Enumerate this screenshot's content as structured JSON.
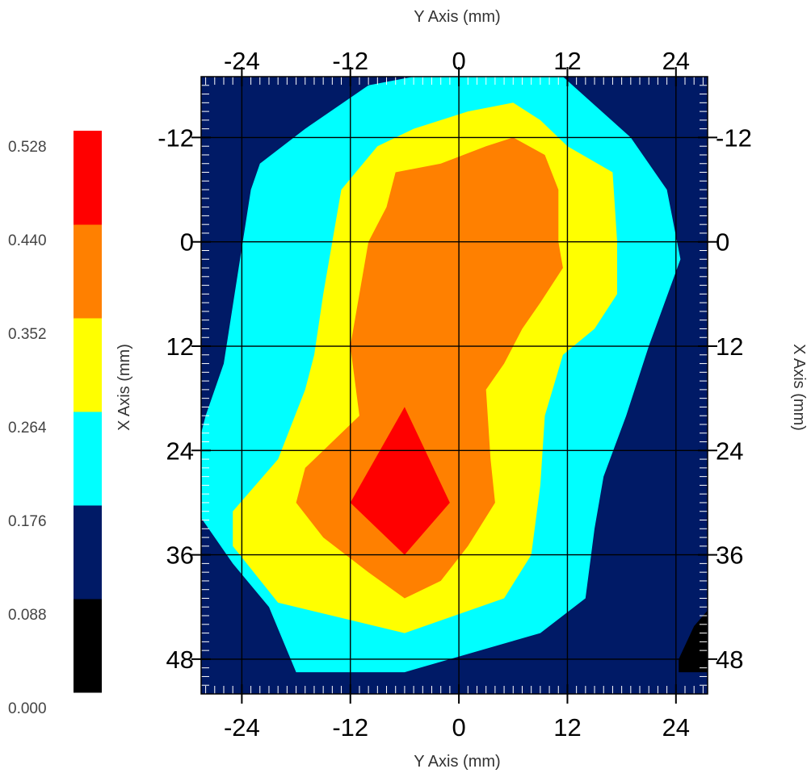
{
  "chart_data": {
    "type": "contour",
    "x_axis": {
      "label": "Y Axis (mm)",
      "range": [
        -28.5,
        27.5
      ],
      "ticks": [
        -24,
        -12,
        0,
        12,
        24
      ],
      "position": "top and bottom"
    },
    "y_axis": {
      "label": "X Axis (mm)",
      "range": [
        -19,
        52
      ],
      "ticks": [
        -12,
        0,
        12,
        24,
        36,
        48
      ],
      "inverted": true,
      "position": "left and right"
    },
    "grid": true,
    "colorbar": {
      "position": "left",
      "levels": [
        "0.000",
        "0.088",
        "0.176",
        "0.264",
        "0.352",
        "0.440",
        "0.528"
      ],
      "colors": [
        "#000000",
        "#001a66",
        "#00ffff",
        "#ffff00",
        "#ff8000",
        "#ff0000"
      ]
    },
    "regions": [
      {
        "level_min": 0.176,
        "level_max": 0.264,
        "color": "#00ffff",
        "points": [
          [
            -5,
            -19
          ],
          [
            11.5,
            -19
          ],
          [
            19,
            -12
          ],
          [
            23,
            -6
          ],
          [
            24.5,
            2
          ],
          [
            21,
            12
          ],
          [
            18.5,
            20
          ],
          [
            16,
            27
          ],
          [
            15,
            33
          ],
          [
            14,
            41
          ],
          [
            9,
            45
          ],
          [
            -6,
            49.5
          ],
          [
            -18,
            49.5
          ],
          [
            -21,
            42
          ],
          [
            -25,
            37
          ],
          [
            -29,
            31
          ],
          [
            -29,
            24
          ],
          [
            -28,
            20
          ],
          [
            -26,
            14
          ],
          [
            -23,
            -6
          ],
          [
            -22,
            -9
          ],
          [
            -17,
            -13
          ],
          [
            -10,
            -18
          ]
        ]
      },
      {
        "level_min": 0.264,
        "level_max": 0.352,
        "color": "#ffff00",
        "points": [
          [
            1,
            -15
          ],
          [
            6,
            -16
          ],
          [
            9,
            -14
          ],
          [
            12,
            -11
          ],
          [
            17,
            -8
          ],
          [
            17.5,
            0
          ],
          [
            17.5,
            6
          ],
          [
            15,
            10
          ],
          [
            11.5,
            13
          ],
          [
            9.5,
            20
          ],
          [
            9,
            28
          ],
          [
            8,
            36
          ],
          [
            5,
            41
          ],
          [
            -6,
            45
          ],
          [
            -20,
            41.5
          ],
          [
            -25,
            35
          ],
          [
            -25,
            31
          ],
          [
            -20,
            25
          ],
          [
            -17,
            17
          ],
          [
            -16,
            13
          ],
          [
            -15,
            6
          ],
          [
            -13,
            -6
          ],
          [
            -9,
            -11
          ],
          [
            -5,
            -13
          ]
        ]
      },
      {
        "level_min": 0.352,
        "level_max": 0.44,
        "color": "#ff8000",
        "points": [
          [
            3,
            -11
          ],
          [
            6,
            -12
          ],
          [
            9.5,
            -10
          ],
          [
            11,
            -6
          ],
          [
            11,
            0
          ],
          [
            11.5,
            3
          ],
          [
            9,
            7
          ],
          [
            7,
            10
          ],
          [
            5,
            14
          ],
          [
            3,
            17
          ],
          [
            3.5,
            25
          ],
          [
            4,
            30
          ],
          [
            1,
            35
          ],
          [
            -2,
            39
          ],
          [
            -6,
            41
          ],
          [
            -10,
            38
          ],
          [
            -15,
            34
          ],
          [
            -18,
            30
          ],
          [
            -17,
            26
          ],
          [
            -11,
            20
          ],
          [
            -12,
            12
          ],
          [
            -10,
            0
          ],
          [
            -8,
            -4
          ],
          [
            -7,
            -8
          ],
          [
            -2,
            -9
          ]
        ]
      },
      {
        "level_min": 0.44,
        "level_max": 0.528,
        "color": "#ff0000",
        "points": [
          [
            -6,
            19
          ],
          [
            -1,
            30
          ],
          [
            -6,
            36
          ],
          [
            -12,
            30
          ]
        ]
      },
      {
        "level_min": 0.0,
        "level_max": 0.088,
        "color": "#000000",
        "points": [
          [
            24.3,
            48
          ],
          [
            26,
            44.2
          ],
          [
            27.5,
            42.4
          ],
          [
            27.5,
            49.5
          ],
          [
            24.3,
            49.5
          ]
        ]
      }
    ]
  }
}
